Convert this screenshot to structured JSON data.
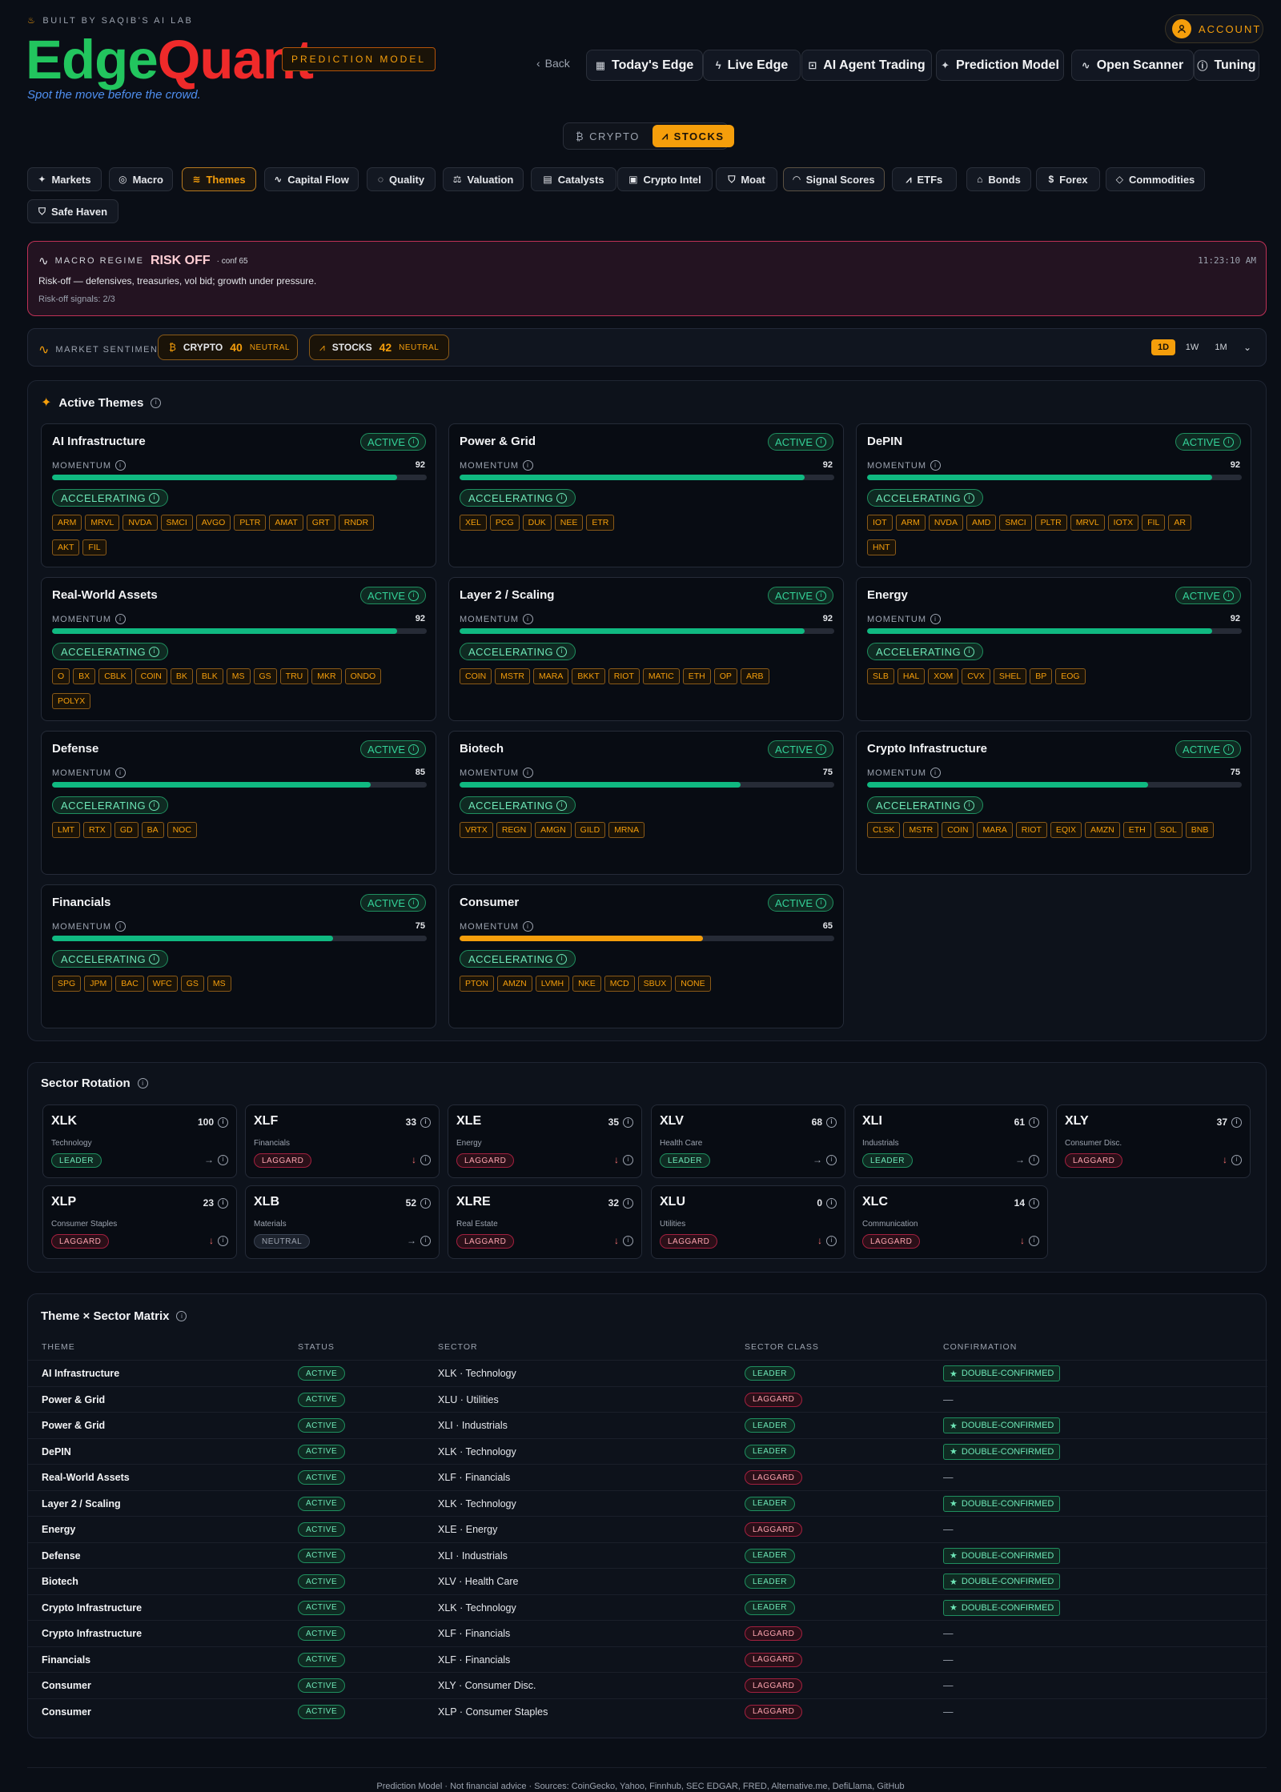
{
  "header": {
    "lab": "BUILT BY SAQIB'S AI LAB",
    "logo_a": "Edge",
    "logo_b": "Quant",
    "model_badge": "PREDICTION MODEL",
    "tagline": "Spot the move before the crowd.",
    "account": "ACCOUNT",
    "back": "Back"
  },
  "nav": [
    "Today's Edge",
    "Live Edge",
    "AI Agent Trading",
    "Prediction Model",
    "Open Scanner",
    "Tuning"
  ],
  "toggle": {
    "crypto": "CRYPTO",
    "stocks": "STOCKS"
  },
  "tabs": [
    "Markets",
    "Macro",
    "Themes",
    "Capital Flow",
    "Quality",
    "Valuation",
    "Catalysts",
    "Crypto Intel",
    "Moat",
    "Signal Scores",
    "ETFs",
    "Bonds",
    "Forex",
    "Commodities",
    "Safe Haven"
  ],
  "regime": {
    "label": "MACRO REGIME",
    "state": "RISK OFF",
    "conf": "· conf 65",
    "time": "11:23:10 AM",
    "desc": "Risk-off — defensives, treasuries, vol bid; growth under pressure.",
    "signals": "Risk-off signals: 2/3"
  },
  "sentiment": {
    "label": "MARKET SENTIMENT",
    "crypto_name": "CRYPTO",
    "crypto_val": "40",
    "crypto_state": "NEUTRAL",
    "stocks_name": "STOCKS",
    "stocks_val": "42",
    "stocks_state": "NEUTRAL",
    "ranges": [
      "1D",
      "1W",
      "1M"
    ]
  },
  "themes": {
    "title": "Active Themes",
    "status_label": "ACTIVE",
    "momentum_label": "MOMENTUM",
    "accel_label": "ACCELERATING",
    "items": [
      {
        "name": "AI Infrastructure",
        "momentum": 92,
        "tickers": [
          "ARM",
          "MRVL",
          "NVDA",
          "SMCI",
          "AVGO",
          "PLTR",
          "AMAT",
          "GRT",
          "RNDR",
          "AKT",
          "FIL"
        ]
      },
      {
        "name": "Power & Grid",
        "momentum": 92,
        "tickers": [
          "XEL",
          "PCG",
          "DUK",
          "NEE",
          "ETR"
        ]
      },
      {
        "name": "DePIN",
        "momentum": 92,
        "tickers": [
          "IOT",
          "ARM",
          "NVDA",
          "AMD",
          "SMCI",
          "PLTR",
          "MRVL",
          "IOTX",
          "FIL",
          "AR",
          "HNT"
        ]
      },
      {
        "name": "Real-World Assets",
        "momentum": 92,
        "tickers": [
          "O",
          "BX",
          "CBLK",
          "COIN",
          "BK",
          "BLK",
          "MS",
          "GS",
          "TRU",
          "MKR",
          "ONDO",
          "POLYX"
        ]
      },
      {
        "name": "Layer 2 / Scaling",
        "momentum": 92,
        "tickers": [
          "COIN",
          "MSTR",
          "MARA",
          "BKKT",
          "RIOT",
          "MATIC",
          "ETH",
          "OP",
          "ARB"
        ]
      },
      {
        "name": "Energy",
        "momentum": 92,
        "tickers": [
          "SLB",
          "HAL",
          "XOM",
          "CVX",
          "SHEL",
          "BP",
          "EOG"
        ]
      },
      {
        "name": "Defense",
        "momentum": 85,
        "tickers": [
          "LMT",
          "RTX",
          "GD",
          "BA",
          "NOC"
        ]
      },
      {
        "name": "Biotech",
        "momentum": 75,
        "tickers": [
          "VRTX",
          "REGN",
          "AMGN",
          "GILD",
          "MRNA"
        ]
      },
      {
        "name": "Crypto Infrastructure",
        "momentum": 75,
        "tickers": [
          "CLSK",
          "MSTR",
          "COIN",
          "MARA",
          "RIOT",
          "EQIX",
          "AMZN",
          "ETH",
          "SOL",
          "BNB"
        ]
      },
      {
        "name": "Financials",
        "momentum": 75,
        "tickers": [
          "SPG",
          "JPM",
          "BAC",
          "WFC",
          "GS",
          "MS"
        ]
      },
      {
        "name": "Consumer",
        "momentum": 65,
        "tickers": [
          "PTON",
          "AMZN",
          "LVMH",
          "NKE",
          "MCD",
          "SBUX",
          "NONE"
        ]
      }
    ],
    "colors": {
      "green": "#10b981",
      "amber": "#f59e0b"
    }
  },
  "sectors": {
    "title": "Sector Rotation",
    "items": [
      {
        "sym": "XLK",
        "score": "100",
        "name": "Technology",
        "cls": "LEADER",
        "dir": "→"
      },
      {
        "sym": "XLF",
        "score": "33",
        "name": "Financials",
        "cls": "LAGGARD",
        "dir": "↓"
      },
      {
        "sym": "XLE",
        "score": "35",
        "name": "Energy",
        "cls": "LAGGARD",
        "dir": "↓"
      },
      {
        "sym": "XLV",
        "score": "68",
        "name": "Health Care",
        "cls": "LEADER",
        "dir": "→"
      },
      {
        "sym": "XLI",
        "score": "61",
        "name": "Industrials",
        "cls": "LEADER",
        "dir": "→"
      },
      {
        "sym": "XLY",
        "score": "37",
        "name": "Consumer Disc.",
        "cls": "LAGGARD",
        "dir": "↓"
      },
      {
        "sym": "XLP",
        "score": "23",
        "name": "Consumer Staples",
        "cls": "LAGGARD",
        "dir": "↓"
      },
      {
        "sym": "XLB",
        "score": "52",
        "name": "Materials",
        "cls": "NEUTRAL",
        "dir": "→"
      },
      {
        "sym": "XLRE",
        "score": "32",
        "name": "Real Estate",
        "cls": "LAGGARD",
        "dir": "↓"
      },
      {
        "sym": "XLU",
        "score": "0",
        "name": "Utilities",
        "cls": "LAGGARD",
        "dir": "↓"
      },
      {
        "sym": "XLC",
        "score": "14",
        "name": "Communication",
        "cls": "LAGGARD",
        "dir": "↓"
      }
    ]
  },
  "matrix": {
    "title": "Theme × Sector Matrix",
    "headers": [
      "THEME",
      "STATUS",
      "SECTOR",
      "SECTOR CLASS",
      "CONFIRMATION"
    ],
    "rows": [
      {
        "theme": "AI Infrastructure",
        "status": "ACTIVE",
        "sector": "XLK · Technology",
        "cls": "LEADER",
        "conf": "DOUBLE-CONFIRMED"
      },
      {
        "theme": "Power & Grid",
        "status": "ACTIVE",
        "sector": "XLU · Utilities",
        "cls": "LAGGARD",
        "conf": "—"
      },
      {
        "theme": "Power & Grid",
        "status": "ACTIVE",
        "sector": "XLI · Industrials",
        "cls": "LEADER",
        "conf": "DOUBLE-CONFIRMED"
      },
      {
        "theme": "DePIN",
        "status": "ACTIVE",
        "sector": "XLK · Technology",
        "cls": "LEADER",
        "conf": "DOUBLE-CONFIRMED"
      },
      {
        "theme": "Real-World Assets",
        "status": "ACTIVE",
        "sector": "XLF · Financials",
        "cls": "LAGGARD",
        "conf": "—"
      },
      {
        "theme": "Layer 2 / Scaling",
        "status": "ACTIVE",
        "sector": "XLK · Technology",
        "cls": "LEADER",
        "conf": "DOUBLE-CONFIRMED"
      },
      {
        "theme": "Energy",
        "status": "ACTIVE",
        "sector": "XLE · Energy",
        "cls": "LAGGARD",
        "conf": "—"
      },
      {
        "theme": "Defense",
        "status": "ACTIVE",
        "sector": "XLI · Industrials",
        "cls": "LEADER",
        "conf": "DOUBLE-CONFIRMED"
      },
      {
        "theme": "Biotech",
        "status": "ACTIVE",
        "sector": "XLV · Health Care",
        "cls": "LEADER",
        "conf": "DOUBLE-CONFIRMED"
      },
      {
        "theme": "Crypto Infrastructure",
        "status": "ACTIVE",
        "sector": "XLK · Technology",
        "cls": "LEADER",
        "conf": "DOUBLE-CONFIRMED"
      },
      {
        "theme": "Crypto Infrastructure",
        "status": "ACTIVE",
        "sector": "XLF · Financials",
        "cls": "LAGGARD",
        "conf": "—"
      },
      {
        "theme": "Financials",
        "status": "ACTIVE",
        "sector": "XLF · Financials",
        "cls": "LAGGARD",
        "conf": "—"
      },
      {
        "theme": "Consumer",
        "status": "ACTIVE",
        "sector": "XLY · Consumer Disc.",
        "cls": "LAGGARD",
        "conf": "—"
      },
      {
        "theme": "Consumer",
        "status": "ACTIVE",
        "sector": "XLP · Consumer Staples",
        "cls": "LAGGARD",
        "conf": "—"
      }
    ]
  },
  "footer": "Prediction Model · Not financial advice · Sources: CoinGecko, Yahoo, Finnhub, SEC EDGAR, FRED, Alternative.me, DefiLlama, GitHub"
}
